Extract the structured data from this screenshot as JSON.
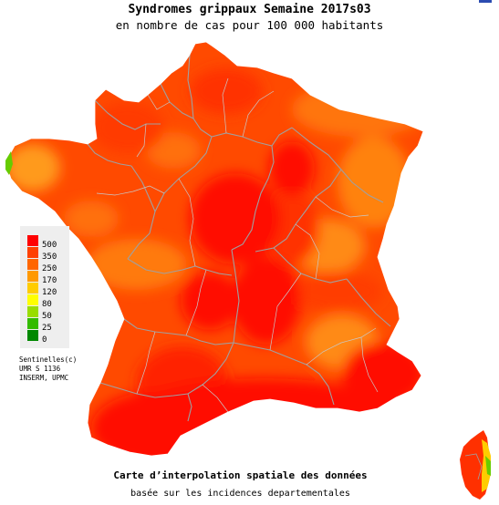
{
  "title": "Syndromes grippaux Semaine 2017s03",
  "subtitle": "en nombre de cas pour 100 000 habitants",
  "legend": {
    "thresholds": [
      "500",
      "350",
      "250",
      "170",
      "120",
      "80",
      "50",
      "25",
      "0"
    ],
    "colors": [
      "#ff0000",
      "#ff4000",
      "#ff6600",
      "#ff9900",
      "#ffcc00",
      "#ffff00",
      "#99dd00",
      "#33bb00",
      "#008800"
    ]
  },
  "credits": {
    "line1": "Sentinelles(c)",
    "line2": "UMR S 1136",
    "line3": "INSERM, UPMC"
  },
  "caption": {
    "line1": "Carte d’interpolation spatiale des données",
    "line2": "basée sur les incidences departementales"
  }
}
